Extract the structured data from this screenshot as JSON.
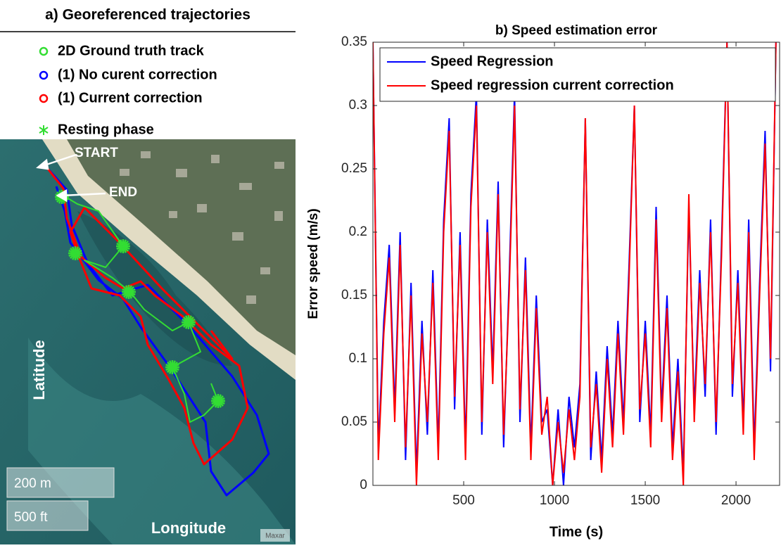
{
  "map_panel": {
    "title": "a) Georeferenced trajectories",
    "legend": [
      {
        "label": "2D Ground truth track",
        "color": "#33dd33"
      },
      {
        "label": "(1) No curent correction",
        "color": "#0000ff"
      },
      {
        "label": "(1) Current correction",
        "color": "#ff0000"
      },
      {
        "label": "Resting phase",
        "color": "#33dd33"
      }
    ],
    "start_label": "START",
    "end_label": "END",
    "y_label": "Latitude",
    "x_label": "Longitude",
    "scale_metric": "200 m",
    "scale_imperial": "500 ft",
    "attribution": "Maxar"
  },
  "chart_data": {
    "type": "line",
    "title": "b) Speed estimation error",
    "x_label": "Time (s)",
    "y_label": "Error speed (m/s)",
    "xlim": [
      0,
      2240
    ],
    "ylim": [
      0,
      0.35
    ],
    "xticks": [
      500,
      1000,
      1500,
      2000
    ],
    "yticks": [
      0,
      0.05,
      0.1,
      0.15,
      0.2,
      0.25,
      0.3,
      0.35
    ],
    "legend_position": "upper left",
    "x": [
      0,
      30,
      60,
      90,
      120,
      150,
      180,
      210,
      240,
      270,
      300,
      330,
      360,
      390,
      420,
      450,
      480,
      510,
      540,
      570,
      600,
      630,
      660,
      690,
      720,
      750,
      780,
      810,
      840,
      870,
      900,
      930,
      960,
      990,
      1020,
      1050,
      1080,
      1110,
      1140,
      1170,
      1200,
      1230,
      1260,
      1290,
      1320,
      1350,
      1380,
      1410,
      1440,
      1470,
      1500,
      1530,
      1560,
      1590,
      1620,
      1650,
      1680,
      1710,
      1740,
      1770,
      1800,
      1830,
      1860,
      1890,
      1920,
      1950,
      1980,
      2010,
      2040,
      2070,
      2100,
      2130,
      2160,
      2190,
      2220
    ],
    "series": [
      {
        "name": "Speed Regression",
        "color": "#0000ff",
        "values": [
          0.35,
          0.03,
          0.13,
          0.19,
          0.06,
          0.2,
          0.02,
          0.16,
          0.01,
          0.13,
          0.04,
          0.17,
          0.03,
          0.21,
          0.29,
          0.06,
          0.2,
          0.03,
          0.23,
          0.31,
          0.04,
          0.21,
          0.09,
          0.24,
          0.03,
          0.16,
          0.31,
          0.05,
          0.18,
          0.03,
          0.15,
          0.05,
          0.06,
          0.0,
          0.06,
          0.0,
          0.07,
          0.03,
          0.08,
          0.29,
          0.02,
          0.09,
          0.02,
          0.11,
          0.04,
          0.13,
          0.05,
          0.17,
          0.3,
          0.05,
          0.13,
          0.04,
          0.22,
          0.06,
          0.15,
          0.03,
          0.1,
          0.01,
          0.22,
          0.06,
          0.17,
          0.07,
          0.21,
          0.04,
          0.19,
          0.35,
          0.07,
          0.17,
          0.05,
          0.21,
          0.03,
          0.16,
          0.28,
          0.09,
          0.35
        ]
      },
      {
        "name": "Speed regression current correction",
        "color": "#ff0000",
        "values": [
          0.35,
          0.02,
          0.12,
          0.18,
          0.05,
          0.19,
          0.03,
          0.15,
          0.0,
          0.12,
          0.05,
          0.16,
          0.02,
          0.2,
          0.28,
          0.07,
          0.19,
          0.02,
          0.22,
          0.3,
          0.05,
          0.2,
          0.08,
          0.23,
          0.04,
          0.15,
          0.3,
          0.06,
          0.17,
          0.02,
          0.14,
          0.04,
          0.07,
          0.0,
          0.05,
          0.01,
          0.06,
          0.02,
          0.07,
          0.29,
          0.03,
          0.08,
          0.01,
          0.1,
          0.03,
          0.12,
          0.04,
          0.16,
          0.3,
          0.06,
          0.12,
          0.03,
          0.21,
          0.05,
          0.14,
          0.02,
          0.09,
          0.0,
          0.23,
          0.05,
          0.16,
          0.08,
          0.2,
          0.05,
          0.18,
          0.35,
          0.08,
          0.16,
          0.04,
          0.2,
          0.02,
          0.15,
          0.27,
          0.1,
          0.35
        ]
      }
    ]
  }
}
